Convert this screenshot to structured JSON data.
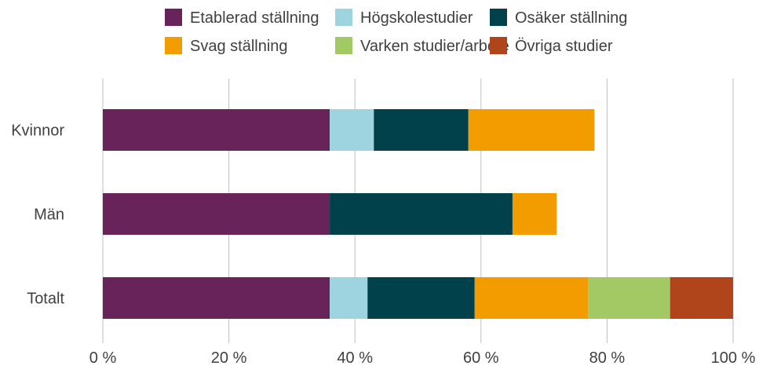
{
  "chart_data": {
    "type": "bar",
    "orientation": "horizontal",
    "stacked": true,
    "categories": [
      "Kvinnor",
      "Män",
      "Totalt"
    ],
    "series": [
      {
        "name": "Etablerad ställning",
        "color": "#68245A",
        "values": [
          36,
          36,
          36
        ]
      },
      {
        "name": "Högskolestudier",
        "color": "#9DD4DF",
        "values": [
          7,
          0,
          6
        ]
      },
      {
        "name": "Osäker ställning",
        "color": "#00414B",
        "values": [
          15,
          29,
          17
        ]
      },
      {
        "name": "Svag ställning",
        "color": "#F39C00",
        "values": [
          20,
          7,
          18
        ]
      },
      {
        "name": "Varken studier/arbete",
        "color": "#A2C964",
        "values": [
          0,
          0,
          13
        ]
      },
      {
        "name": "Övriga studier",
        "color": "#B0441B",
        "values": [
          0,
          0,
          10
        ]
      }
    ],
    "xlim": [
      0,
      100
    ],
    "x_ticks": [
      0,
      20,
      40,
      60,
      80,
      100
    ],
    "x_tick_labels": [
      "0 %",
      "20 %",
      "40 %",
      "60 %",
      "80 %",
      "100 %"
    ],
    "grid": true,
    "legend_position": "top",
    "title": "",
    "xlabel": "",
    "ylabel": ""
  }
}
